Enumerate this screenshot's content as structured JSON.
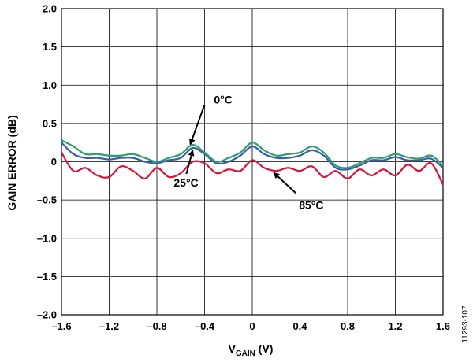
{
  "chart_data": {
    "type": "line",
    "xlabel": {
      "main": "V",
      "sub": "GAIN",
      "unit": " (V)"
    },
    "ylabel": "GAIN ERROR (dB)",
    "xlim": [
      -1.6,
      1.6
    ],
    "ylim": [
      -2.0,
      2.0
    ],
    "x_ticks": [
      -1.6,
      -1.2,
      -0.8,
      -0.4,
      0,
      0.4,
      0.8,
      1.2,
      1.6
    ],
    "x_tick_labels": [
      "–1.6",
      "–1.2",
      "–0.8",
      "–0.4",
      "0",
      "0.4",
      "0.8",
      "1.2",
      "1.6"
    ],
    "y_ticks": [
      2.0,
      1.5,
      1.0,
      0.5,
      0,
      -0.5,
      -1.0,
      -1.5,
      -2.0
    ],
    "y_tick_labels": [
      "2.0",
      "1.5",
      "1.0",
      "0.5",
      "0",
      "–0.5",
      "–1.0",
      "–1.5",
      "–2.0"
    ],
    "grid": true,
    "series": [
      {
        "name": "0°C",
        "color": "#2e9e6e",
        "x": [
          -1.6,
          -1.5,
          -1.4,
          -1.3,
          -1.2,
          -1.1,
          -1.0,
          -0.9,
          -0.8,
          -0.7,
          -0.6,
          -0.5,
          -0.4,
          -0.3,
          -0.2,
          -0.1,
          0,
          0.1,
          0.2,
          0.3,
          0.4,
          0.5,
          0.6,
          0.7,
          0.8,
          0.9,
          1.0,
          1.1,
          1.2,
          1.3,
          1.4,
          1.5,
          1.6
        ],
        "values": [
          0.28,
          0.2,
          0.1,
          0.1,
          0.08,
          0.08,
          0.1,
          0.05,
          0.0,
          0.05,
          0.1,
          0.22,
          0.12,
          0.0,
          0.05,
          0.12,
          0.25,
          0.15,
          0.08,
          0.1,
          0.12,
          0.2,
          0.12,
          -0.05,
          -0.08,
          -0.02,
          0.05,
          0.05,
          0.1,
          0.06,
          0.04,
          0.08,
          -0.05
        ]
      },
      {
        "name": "25°C",
        "color": "#3a5fa8",
        "x": [
          -1.6,
          -1.5,
          -1.4,
          -1.3,
          -1.2,
          -1.1,
          -1.0,
          -0.9,
          -0.8,
          -0.7,
          -0.6,
          -0.5,
          -0.4,
          -0.3,
          -0.2,
          -0.1,
          0,
          0.1,
          0.2,
          0.3,
          0.4,
          0.5,
          0.6,
          0.7,
          0.8,
          0.9,
          1.0,
          1.1,
          1.2,
          1.3,
          1.4,
          1.5,
          1.6
        ],
        "values": [
          0.25,
          0.1,
          0.05,
          0.05,
          0.03,
          0.05,
          0.05,
          0.0,
          -0.02,
          0.02,
          0.05,
          0.18,
          0.1,
          -0.02,
          0.0,
          0.08,
          0.2,
          0.1,
          0.05,
          0.05,
          0.08,
          0.15,
          0.08,
          -0.08,
          -0.1,
          -0.05,
          0.02,
          0.02,
          0.06,
          0.02,
          0.02,
          0.04,
          -0.08
        ]
      },
      {
        "name": "85°C",
        "color": "#d4163c",
        "x": [
          -1.6,
          -1.5,
          -1.4,
          -1.3,
          -1.2,
          -1.1,
          -1.0,
          -0.9,
          -0.8,
          -0.7,
          -0.6,
          -0.5,
          -0.4,
          -0.3,
          -0.2,
          -0.1,
          0,
          0.1,
          0.2,
          0.3,
          0.4,
          0.5,
          0.6,
          0.7,
          0.8,
          0.9,
          1.0,
          1.1,
          1.2,
          1.3,
          1.4,
          1.5,
          1.6
        ],
        "values": [
          0.12,
          -0.12,
          -0.08,
          -0.18,
          -0.2,
          -0.06,
          -0.12,
          -0.22,
          -0.08,
          -0.2,
          -0.15,
          0.0,
          -0.02,
          -0.15,
          -0.1,
          -0.12,
          0.02,
          -0.08,
          -0.12,
          -0.08,
          -0.12,
          -0.06,
          -0.2,
          -0.12,
          -0.22,
          -0.1,
          -0.18,
          -0.1,
          -0.18,
          -0.04,
          -0.12,
          -0.02,
          -0.3
        ]
      }
    ],
    "annotations": [
      {
        "text": "0°C",
        "series": "0°C",
        "at_x": -0.52
      },
      {
        "text": "25°C",
        "series": "25°C",
        "at_x": -0.5
      },
      {
        "text": "85°C",
        "series": "85°C",
        "at_x": 0.18
      }
    ],
    "figure_id": "11293-107"
  }
}
